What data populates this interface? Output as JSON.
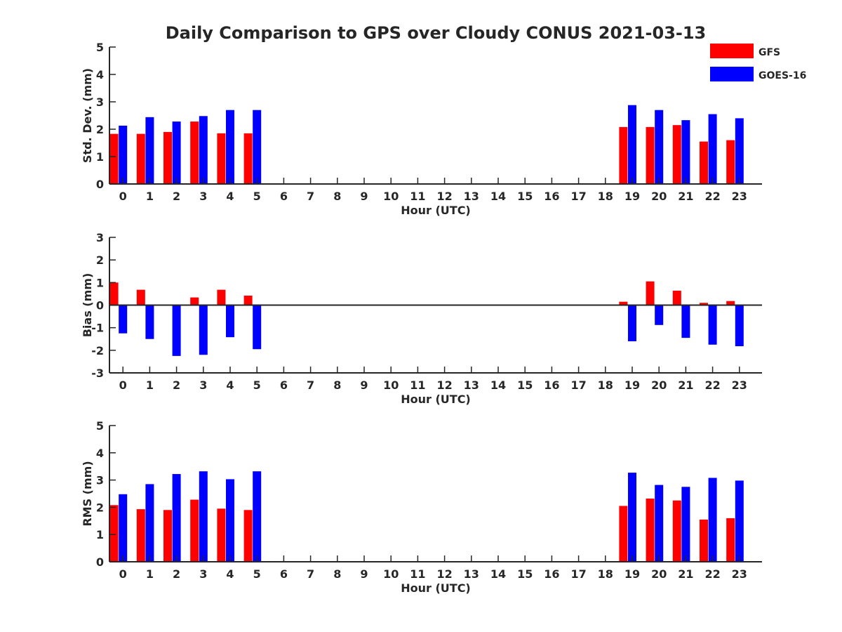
{
  "title": "Daily Comparison to GPS over Cloudy CONUS 2021-03-13",
  "legend": {
    "placement": "top-right",
    "entries": [
      {
        "label": "GFS",
        "color": "#ff0000"
      },
      {
        "label": "GOES-16",
        "color": "#0000ff"
      }
    ]
  },
  "chart_data": [
    {
      "type": "bar",
      "xlabel": "Hour (UTC)",
      "ylabel": "Std. Dev. (mm)",
      "ylim": [
        0,
        5
      ],
      "yticks": [
        0,
        1,
        2,
        3,
        4,
        5
      ],
      "categories": [
        0,
        1,
        2,
        3,
        4,
        5,
        6,
        7,
        8,
        9,
        10,
        11,
        12,
        13,
        14,
        15,
        16,
        17,
        18,
        19,
        20,
        21,
        22,
        23
      ],
      "series": [
        {
          "name": "GFS",
          "color": "#ff0000",
          "values": [
            1.83,
            1.83,
            1.9,
            2.28,
            1.85,
            1.85,
            null,
            null,
            null,
            null,
            null,
            null,
            null,
            null,
            null,
            null,
            null,
            null,
            null,
            2.08,
            2.08,
            2.15,
            1.55,
            1.6
          ]
        },
        {
          "name": "GOES-16",
          "color": "#0000ff",
          "values": [
            2.13,
            2.44,
            2.28,
            2.48,
            2.7,
            2.7,
            null,
            null,
            null,
            null,
            null,
            null,
            null,
            null,
            null,
            null,
            null,
            null,
            null,
            2.88,
            2.7,
            2.33,
            2.55,
            2.4
          ]
        }
      ]
    },
    {
      "type": "bar",
      "xlabel": "Hour (UTC)",
      "ylabel": "Bias (mm)",
      "ylim": [
        -3,
        3
      ],
      "yticks": [
        -3,
        -2,
        -1,
        0,
        1,
        2,
        3
      ],
      "zero_line": true,
      "categories": [
        0,
        1,
        2,
        3,
        4,
        5,
        6,
        7,
        8,
        9,
        10,
        11,
        12,
        13,
        14,
        15,
        16,
        17,
        18,
        19,
        20,
        21,
        22,
        23
      ],
      "series": [
        {
          "name": "GFS",
          "color": "#ff0000",
          "values": [
            1.0,
            0.68,
            0.0,
            0.34,
            0.68,
            0.42,
            null,
            null,
            null,
            null,
            null,
            null,
            null,
            null,
            null,
            null,
            null,
            null,
            null,
            0.15,
            1.05,
            0.64,
            0.1,
            0.18
          ]
        },
        {
          "name": "GOES-16",
          "color": "#0000ff",
          "values": [
            -1.25,
            -1.5,
            -2.25,
            -2.2,
            -1.42,
            -1.95,
            null,
            null,
            null,
            null,
            null,
            null,
            null,
            null,
            null,
            null,
            null,
            null,
            null,
            -1.6,
            -0.88,
            -1.45,
            -1.75,
            -1.82
          ]
        }
      ]
    },
    {
      "type": "bar",
      "xlabel": "Hour (UTC)",
      "ylabel": "RMS (mm)",
      "ylim": [
        0,
        5
      ],
      "yticks": [
        0,
        1,
        2,
        3,
        4,
        5
      ],
      "categories": [
        0,
        1,
        2,
        3,
        4,
        5,
        6,
        7,
        8,
        9,
        10,
        11,
        12,
        13,
        14,
        15,
        16,
        17,
        18,
        19,
        20,
        21,
        22,
        23
      ],
      "series": [
        {
          "name": "GFS",
          "color": "#ff0000",
          "values": [
            2.08,
            1.93,
            1.9,
            2.28,
            1.95,
            1.9,
            null,
            null,
            null,
            null,
            null,
            null,
            null,
            null,
            null,
            null,
            null,
            null,
            null,
            2.05,
            2.32,
            2.25,
            1.55,
            1.6
          ]
        },
        {
          "name": "GOES-16",
          "color": "#0000ff",
          "values": [
            2.48,
            2.85,
            3.22,
            3.32,
            3.03,
            3.32,
            null,
            null,
            null,
            null,
            null,
            null,
            null,
            null,
            null,
            null,
            null,
            null,
            null,
            3.27,
            2.82,
            2.75,
            3.08,
            2.98
          ]
        }
      ]
    }
  ]
}
